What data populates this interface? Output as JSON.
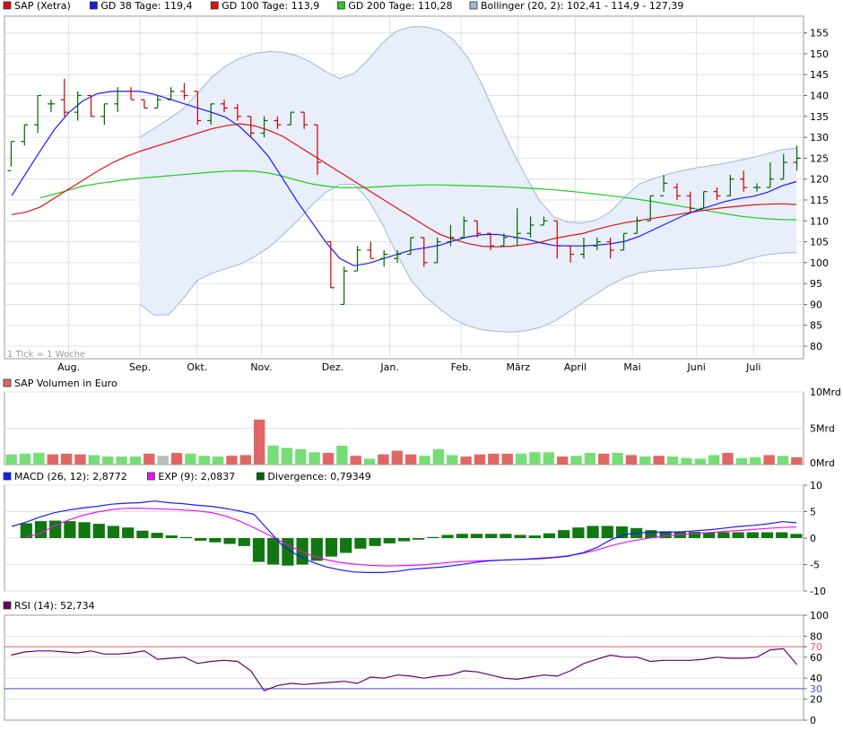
{
  "chart_data": [
    {
      "type": "candlestick",
      "panel": "price",
      "legend": [
        {
          "label": "SAP (Xetra)",
          "color": "#d01010"
        },
        {
          "label": "GD 38 Tage: 119,4",
          "color": "#1a1aff"
        },
        {
          "label": "GD 100 Tage: 113,9",
          "color": "#e01010"
        },
        {
          "label": "GD 200 Tage: 110,28",
          "color": "#22cc22"
        },
        {
          "label": "Bollinger (20, 2): 102,41 - 114,9 - 127,39",
          "color": "#9fb8d8"
        }
      ],
      "note": "1 Tick = 1 Woche",
      "months": [
        "Aug.",
        "Sep.",
        "Okt.",
        "Nov.",
        "Dez.",
        "Jan.",
        "Feb.",
        "März",
        "April",
        "Mai",
        "Juni",
        "Juli"
      ],
      "month_weeks": [
        4,
        9,
        13,
        17.5,
        22.5,
        26.5,
        31.5,
        35.5,
        39.5,
        43.5,
        48,
        52
      ],
      "yticks": [
        80,
        85,
        90,
        95,
        100,
        105,
        110,
        115,
        120,
        125,
        130,
        135,
        140,
        145,
        150,
        155
      ],
      "ylim": [
        77,
        159
      ],
      "weeks": 56,
      "bars": [
        [
          122,
          123,
          129,
          129
        ],
        [
          129,
          128,
          133,
          133
        ],
        [
          133,
          131,
          140,
          140
        ],
        [
          138,
          136,
          139,
          138
        ],
        [
          139,
          135,
          144,
          136
        ],
        [
          136,
          134,
          141,
          140
        ],
        [
          140,
          135,
          140,
          135
        ],
        [
          135,
          133,
          138,
          138
        ],
        [
          138,
          136,
          142,
          141
        ],
        [
          141,
          139,
          142,
          139
        ],
        [
          139,
          137,
          139,
          137
        ],
        [
          137,
          137,
          140,
          139
        ],
        [
          139,
          139,
          142,
          141
        ],
        [
          141,
          139,
          143,
          140
        ],
        [
          141,
          133,
          141,
          134
        ],
        [
          134,
          133,
          138,
          138
        ],
        [
          138,
          136,
          139,
          137
        ],
        [
          137,
          134,
          138,
          135
        ],
        [
          135,
          130,
          135,
          131
        ],
        [
          131,
          130,
          135,
          134
        ],
        [
          134,
          132,
          135,
          133
        ],
        [
          133,
          133,
          136,
          136
        ],
        [
          136,
          132,
          136,
          133
        ],
        [
          133,
          121,
          133,
          124
        ],
        [
          105,
          94,
          105,
          94
        ],
        [
          90,
          90,
          99,
          98
        ],
        [
          98,
          98,
          104,
          103
        ],
        [
          103,
          101,
          105,
          101
        ],
        [
          101,
          99,
          103,
          102
        ],
        [
          101,
          100,
          103,
          102
        ],
        [
          102,
          102,
          106,
          106
        ],
        [
          106,
          99,
          106,
          100
        ],
        [
          100,
          100,
          106,
          105
        ],
        [
          105,
          104,
          109,
          106
        ],
        [
          106,
          106,
          111,
          110
        ],
        [
          110,
          106,
          110,
          107
        ],
        [
          107,
          103,
          107,
          104
        ],
        [
          104,
          104,
          107,
          106
        ],
        [
          106,
          104,
          113,
          107
        ],
        [
          107,
          106,
          111,
          109
        ],
        [
          109,
          109,
          111,
          110
        ],
        [
          110,
          101,
          110,
          104
        ],
        [
          104,
          100,
          104,
          102
        ],
        [
          102,
          101,
          106,
          104
        ],
        [
          104,
          103,
          106,
          105
        ],
        [
          105,
          101,
          106,
          103
        ],
        [
          103,
          103,
          107,
          107
        ],
        [
          107,
          107,
          111,
          110
        ],
        [
          110,
          110,
          116,
          116
        ],
        [
          116,
          117,
          121,
          119
        ],
        [
          118,
          115,
          119,
          116
        ],
        [
          116,
          112,
          117,
          113
        ],
        [
          113,
          113,
          117,
          117
        ],
        [
          117,
          115,
          118,
          116
        ],
        [
          116,
          116,
          121,
          120
        ],
        [
          120,
          117,
          122,
          118
        ],
        [
          118,
          117,
          119,
          118
        ],
        [
          118,
          118,
          124,
          120
        ],
        [
          120,
          120,
          126,
          124
        ],
        [
          124,
          122,
          128,
          125
        ]
      ],
      "sma38": [
        116,
        121,
        126,
        131,
        135,
        138,
        140,
        141,
        141,
        141,
        141,
        140,
        139,
        138,
        137,
        136,
        135,
        133,
        130,
        127,
        122,
        117,
        112,
        108,
        103,
        100,
        99,
        100,
        101,
        102,
        103,
        103.5,
        104,
        105,
        106,
        106.5,
        107,
        106.5,
        106,
        105.5,
        104.5,
        104,
        104,
        104,
        104.2,
        104.5,
        105,
        106,
        107.5,
        109,
        110.5,
        112,
        113,
        114,
        115,
        115.5,
        116,
        117,
        118.5,
        119.4
      ],
      "sma100": [
        111.5,
        112,
        113,
        115,
        117,
        119,
        121,
        123,
        124.5,
        126,
        127,
        128,
        129,
        130,
        131,
        132,
        132.7,
        133.3,
        133,
        132,
        131,
        129,
        127,
        125,
        123,
        121,
        119,
        117,
        115,
        113,
        111,
        109,
        107,
        105.8,
        104.8,
        104,
        103.8,
        103.8,
        104,
        104.5,
        105,
        106,
        106.5,
        107,
        108,
        108.8,
        109.5,
        110,
        110.5,
        111,
        111.5,
        112,
        112.5,
        113,
        113.3,
        113.6,
        113.9,
        114,
        114.1,
        113.9
      ],
      "sma200": [
        null,
        null,
        115.5,
        116.5,
        117.5,
        118.5,
        119,
        119.5,
        120,
        120.3,
        120.6,
        120.9,
        121.2,
        121.5,
        121.8,
        122,
        122,
        121.7,
        121,
        120,
        119,
        118.4,
        118,
        117.9,
        118,
        118.2,
        118.4,
        118.5,
        118.6,
        118.6,
        118.5,
        118.4,
        118.3,
        118.2,
        118,
        117.8,
        117.6,
        117.3,
        117,
        116.6,
        116.2,
        115.8,
        115.3,
        114.8,
        114.2,
        113.6,
        113,
        112.4,
        111.8,
        111.2,
        110.8,
        110.5,
        110.3,
        110.28
      ],
      "bb_upper": [
        130,
        132,
        134,
        136,
        139,
        143,
        146,
        148,
        149.5,
        150.3,
        150.6,
        150.3,
        149.5,
        148,
        146,
        144,
        144.5,
        147,
        151,
        154.5,
        156.2,
        156.6,
        156.4,
        155.5,
        153,
        149,
        143,
        136,
        129,
        123,
        117,
        112,
        110,
        109.5,
        109.5,
        110.5,
        112.5,
        116,
        118.8,
        120,
        121,
        121.8,
        122.5,
        123,
        123.5,
        124,
        124.8,
        125.4,
        126.3,
        127.1,
        127.39
      ],
      "bb_lower": [
        90,
        87.5,
        87,
        90,
        95,
        97,
        98,
        99,
        100,
        102,
        104,
        107,
        110,
        113.5,
        116.5,
        118.5,
        119.5,
        117,
        112,
        106,
        99,
        94,
        91,
        88.5,
        86.2,
        84.8,
        84,
        83.6,
        83.3,
        83.5,
        84,
        85,
        86.7,
        89,
        91,
        93,
        95,
        96.5,
        97.5,
        98,
        98.2,
        98.4,
        98.6,
        98.8,
        99,
        99.5,
        100.5,
        101.5,
        102,
        102.3,
        102.41
      ],
      "bb_start_week": 9
    },
    {
      "type": "bar",
      "panel": "volume",
      "legend": [
        {
          "label": "SAP Volumen in Euro",
          "color": "#e06666"
        }
      ],
      "yticks": [
        "10Mrd",
        "5Mrd",
        "0Mrd"
      ],
      "ylim": [
        0,
        10
      ],
      "values": [
        1.4,
        1.5,
        1.6,
        1.4,
        1.5,
        1.4,
        1.3,
        1.1,
        1.1,
        1.1,
        1.5,
        1.2,
        1.6,
        1.5,
        1.2,
        1.1,
        1.2,
        1.3,
        6.2,
        2.6,
        2.3,
        2.1,
        1.7,
        1.6,
        2.6,
        1.2,
        0.8,
        1.4,
        1.9,
        1.4,
        1.2,
        2.1,
        1.3,
        1.1,
        1.4,
        1.5,
        1.5,
        1.5,
        1.7,
        1.7,
        1.1,
        1.2,
        1.6,
        1.5,
        1.6,
        1.3,
        1.1,
        1.2,
        1.1,
        0.9,
        0.8,
        1.3,
        1.6,
        0.9,
        1.0,
        1.3,
        1.2,
        1.0
      ],
      "colors": [
        "g",
        "g",
        "g",
        "r",
        "r",
        "r",
        "g",
        "g",
        "g",
        "g",
        "r",
        "g",
        "r",
        "g",
        "g",
        "g",
        "r",
        "r",
        "r",
        "g",
        "g",
        "g",
        "g",
        "r",
        "g",
        "r",
        "g",
        "r",
        "r",
        "r",
        "g",
        "g",
        "g",
        "r",
        "r",
        "r",
        "r",
        "g",
        "g",
        "g",
        "r",
        "g",
        "g",
        "r",
        "g",
        "r",
        "g",
        "r",
        "g",
        "g",
        "g",
        "g",
        "r",
        "g",
        "g",
        "r",
        "g",
        "r"
      ],
      "gray_index": 11
    },
    {
      "type": "line",
      "panel": "macd",
      "legend": [
        {
          "label": "MACD (26, 12): 2,8772",
          "color": "#1a1aff"
        },
        {
          "label": "EXP (9): 2,0837",
          "color": "#ee11ee"
        },
        {
          "label": "Divergence: 0,79349",
          "color": "#006600"
        }
      ],
      "yticks": [
        10,
        5,
        0,
        -5,
        -10
      ],
      "ylim": [
        -10,
        10
      ],
      "macd": [
        2.2,
        3.0,
        4.0,
        4.8,
        5.3,
        5.7,
        6.0,
        6.4,
        6.6,
        6.7,
        7.0,
        6.7,
        6.5,
        6.2,
        6.0,
        5.6,
        5.1,
        4.5,
        1.5,
        -1.5,
        -3.2,
        -4.5,
        -5.4,
        -6.0,
        -6.4,
        -6.5,
        -6.5,
        -6.3,
        -5.9,
        -5.7,
        -5.5,
        -5.2,
        -4.8,
        -4.4,
        -4.2,
        -4.1,
        -4.0,
        -3.9,
        -3.7,
        -3.4,
        -2.8,
        -1.8,
        -0.3,
        0.7,
        1.0,
        1.1,
        1.1,
        1.2,
        1.4,
        1.6,
        1.9,
        2.2,
        2.4,
        2.7,
        3.1,
        2.9
      ],
      "exp": [
        0.2,
        0.9,
        2.5,
        3.6,
        4.5,
        5.1,
        5.5,
        5.7,
        5.6,
        5.5,
        5.4,
        5.2,
        5.0,
        4.4,
        3.4,
        2.1,
        0.7,
        -0.8,
        -2.2,
        -3.4,
        -4.2,
        -4.7,
        -5.0,
        -5.2,
        -5.3,
        -5.2,
        -5.1,
        -4.9,
        -4.6,
        -4.4,
        -4.3,
        -4.2,
        -4.1,
        -4.0,
        -3.8,
        -3.6,
        -3.3,
        -2.8,
        -2.1,
        -1.2,
        -0.6,
        -0.1,
        0.3,
        0.6,
        0.8,
        1.0,
        1.2,
        1.4,
        1.6,
        1.8,
        2.0,
        2.08
      ],
      "exp_start_week": 1,
      "divergence": [
        2.8,
        3.2,
        3.3,
        3.2,
        3.0,
        2.7,
        2.3,
        2.0,
        1.4,
        1.0,
        0.5,
        0.2,
        -0.5,
        -0.8,
        -1.1,
        -1.5,
        -4.5,
        -5.0,
        -5.2,
        -5.0,
        -4.3,
        -3.5,
        -2.8,
        -2.0,
        -1.5,
        -1.0,
        -0.6,
        -0.3,
        0.2,
        0.6,
        0.8,
        0.8,
        0.8,
        0.8,
        0.6,
        0.5,
        0.9,
        1.5,
        2.0,
        2.3,
        2.3,
        2.2,
        1.9,
        1.5,
        1.3,
        1.2,
        1.2,
        1.1,
        1.1,
        1.1,
        1.1,
        1.1,
        1.1,
        0.79
      ],
      "div_start_week": 1
    },
    {
      "type": "line",
      "panel": "rsi",
      "legend": [
        {
          "label": "RSI (14): 52,734",
          "color": "#660066"
        }
      ],
      "yticks": [
        100,
        80,
        70,
        60,
        40,
        30,
        20,
        0
      ],
      "ylim": [
        0,
        100
      ],
      "levels": [
        70,
        30
      ],
      "rsi": [
        62,
        65,
        66,
        66,
        65,
        64,
        66,
        63,
        63,
        64,
        66,
        58,
        59,
        60,
        54,
        56,
        57,
        56,
        47,
        28,
        33,
        35,
        34,
        35,
        36,
        37,
        35,
        41,
        40,
        43,
        42,
        40,
        42,
        43,
        47,
        46,
        43,
        40,
        39,
        41,
        43,
        42,
        47,
        54,
        58,
        62,
        60,
        60,
        56,
        57,
        57,
        57,
        58,
        60,
        59,
        59,
        60,
        67,
        68,
        53
      ]
    }
  ]
}
